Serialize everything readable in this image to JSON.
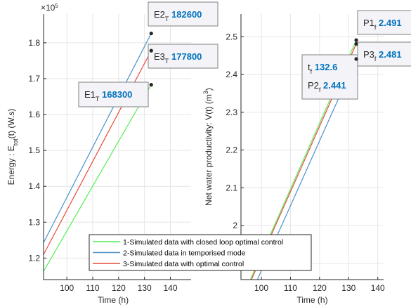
{
  "chart_data": [
    {
      "type": "line",
      "ylabel_main": "Energy : E",
      "ylabel_sub": "tot",
      "ylabel_rest": "(t) (W.s)",
      "xlabel": "Time (h)",
      "exponent_base": "×10",
      "exponent_power": "5",
      "xlim": [
        91,
        148
      ],
      "ylim": [
        1.14,
        1.88
      ],
      "xticks": [
        100,
        110,
        120,
        130,
        140
      ],
      "yticks": [
        1.2,
        1.3,
        1.4,
        1.5,
        1.6,
        1.7,
        1.8
      ],
      "ytick_labels": [
        "1.2",
        "1.3",
        "1.4",
        "1.5",
        "1.6",
        "1.7",
        "1.8"
      ],
      "grid": true,
      "series": [
        {
          "name": "1-Simulated data with closed loop optimal control",
          "color": "#55ee55",
          "x": [
            91,
            132.6
          ],
          "y": [
            1.163,
            1.683
          ]
        },
        {
          "name": "2-Simulated data in temporised mode",
          "color": "#4a90c8",
          "x": [
            91,
            132.6
          ],
          "y": [
            1.243,
            1.826
          ]
        },
        {
          "name": "3-Simulated data with optimal control",
          "color": "#e84a3c",
          "x": [
            91,
            132.6
          ],
          "y": [
            1.21,
            1.778
          ]
        }
      ],
      "datatips": [
        {
          "name_main": "E1",
          "name_sub": "T",
          "value": "168300",
          "x": 132.6,
          "y": 1.683
        },
        {
          "name_main": "E2",
          "name_sub": "T",
          "value": "182600",
          "x": 132.6,
          "y": 1.826
        },
        {
          "name_main": "E3",
          "name_sub": "T",
          "value": "177800",
          "x": 132.6,
          "y": 1.778
        }
      ]
    },
    {
      "type": "line",
      "ylabel_main": "Net water productivity:  V(t)  (m",
      "ylabel_sup": "3",
      "ylabel_rest": ")",
      "xlabel": "Time (h)",
      "xlim": [
        93,
        142
      ],
      "ylim": [
        1.857,
        2.56
      ],
      "xticks": [
        100,
        110,
        120,
        130,
        140
      ],
      "yticks": [
        1.9,
        2.0,
        2.1,
        2.2,
        2.3,
        2.4,
        2.5
      ],
      "ytick_labels": [
        "1.9",
        "2",
        "2.1",
        "2.2",
        "2.3",
        "2.4",
        "2.5"
      ],
      "grid": true,
      "series": [
        {
          "name": "1-Simulated data with closed loop optimal control",
          "color": "#55ee55",
          "x": [
            93,
            132.6
          ],
          "y": [
            1.8,
            2.491
          ]
        },
        {
          "name": "2-Simulated data in temporised mode",
          "color": "#4a90c8",
          "x": [
            93,
            132.6
          ],
          "y": [
            1.76,
            2.441
          ]
        },
        {
          "name": "3-Simulated data with optimal control",
          "color": "#e84a3c",
          "x": [
            93,
            132.6
          ],
          "y": [
            1.795,
            2.481
          ]
        }
      ],
      "datatips": [
        {
          "name_main": "P1",
          "name_sub": "f",
          "value": "2.491",
          "x": 132.6,
          "y": 2.491
        },
        {
          "name_main": "P3",
          "name_sub": "f",
          "value": "2.481",
          "x": 132.6,
          "y": 2.481
        },
        {
          "name_main": "P2",
          "name_sub": "f",
          "value": "2.441",
          "x": 132.6,
          "y": 2.441,
          "t_main": "t",
          "t_sub": "f",
          "t_value": "132.6"
        }
      ]
    }
  ],
  "legend": {
    "placement": "bottom-center",
    "entries": [
      {
        "label": "1-Simulated data with closed loop optimal control",
        "color": "#55ee55"
      },
      {
        "label": "2-Simulated data in temporised mode",
        "color": "#4a90c8"
      },
      {
        "label": "3-Simulated data with optimal control",
        "color": "#e84a3c"
      }
    ]
  }
}
